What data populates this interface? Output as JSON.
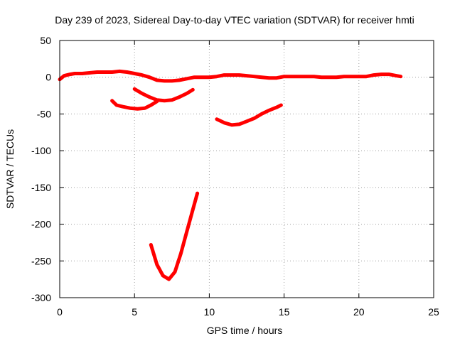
{
  "chart_data": {
    "type": "line",
    "title": "Day 239 of 2023, Sidereal Day-to-day VTEC variation (SDTVAR) for receiver hmti",
    "xlabel": "GPS time / hours",
    "ylabel": "SDTVAR / TECUs",
    "xlim": [
      0,
      25
    ],
    "ylim": [
      -300,
      50
    ],
    "xticks": [
      "0",
      "5",
      "10",
      "15",
      "20",
      "25"
    ],
    "yticks": [
      "50",
      "0",
      "-50",
      "-100",
      "-150",
      "-200",
      "-250",
      "-300"
    ],
    "grid": true,
    "line_color": "#ff0000",
    "series": [
      {
        "x": [
          0,
          0.3,
          0.7,
          1.0,
          1.5,
          2.0,
          2.5,
          3.0,
          3.5,
          4.0,
          4.5,
          5.0,
          5.5,
          6.0,
          6.5,
          7.0,
          7.5,
          8.0,
          8.5,
          9.0,
          9.5,
          10.0,
          10.5,
          11.0,
          11.5,
          12.0,
          12.5,
          13.0,
          13.5,
          14.0,
          14.5,
          15.0,
          15.5,
          16.0,
          16.5,
          17.0,
          17.5,
          18.0,
          18.5,
          19.0,
          19.5,
          20.0,
          20.5,
          21.0,
          21.5,
          22.0,
          22.5,
          22.8
        ],
        "y": [
          -3,
          2,
          4,
          5,
          5,
          6,
          7,
          7,
          7,
          8,
          7,
          5,
          3,
          0,
          -4,
          -5,
          -5,
          -4,
          -2,
          0,
          0,
          0,
          1,
          3,
          3,
          3,
          2,
          1,
          0,
          -1,
          -1,
          1,
          1,
          1,
          1,
          1,
          0,
          0,
          0,
          1,
          1,
          1,
          1,
          3,
          4,
          4,
          2,
          1
        ]
      },
      {
        "x": [
          3.5,
          3.8,
          4.2,
          4.7,
          5.2,
          5.7,
          6.1,
          6.5
        ],
        "y": [
          -32,
          -38,
          -40,
          -42,
          -43,
          -42,
          -38,
          -33
        ]
      },
      {
        "x": [
          5.0,
          5.5,
          6.0,
          6.5,
          7.0,
          7.5,
          8.0,
          8.5,
          8.9
        ],
        "y": [
          -16,
          -22,
          -27,
          -31,
          -32,
          -31,
          -27,
          -22,
          -17
        ]
      },
      {
        "x": [
          10.5,
          11.0,
          11.5,
          12.0,
          12.5,
          13.0,
          13.5,
          14.0,
          14.5,
          14.8
        ],
        "y": [
          -57,
          -62,
          -65,
          -64,
          -60,
          -56,
          -50,
          -45,
          -41,
          -38
        ]
      },
      {
        "x": [
          6.1,
          6.5,
          6.9,
          7.3,
          7.7,
          8.1,
          8.5,
          8.9,
          9.2
        ],
        "y": [
          -228,
          -255,
          -270,
          -275,
          -265,
          -240,
          -210,
          -180,
          -158
        ]
      }
    ]
  }
}
